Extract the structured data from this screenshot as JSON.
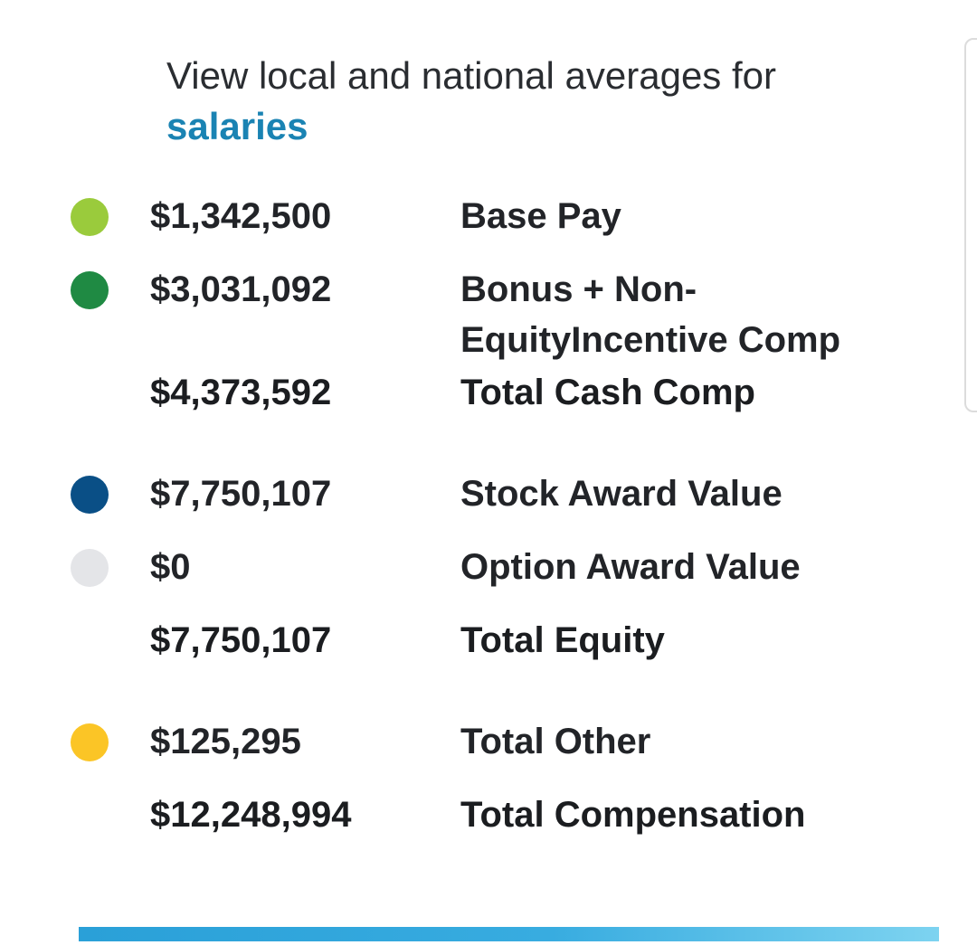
{
  "intro": {
    "text": "View local and national averages for",
    "link_label": "salaries"
  },
  "rows": [
    {
      "amount": "$1,342,500",
      "label": "Base Pay",
      "dot_color": "#9acb3c"
    },
    {
      "amount": "$3,031,092",
      "label": "Bonus + Non-EquityIncentive Comp",
      "dot_color": "#1f8a43"
    },
    {
      "amount": "$4,373,592",
      "label": "Total Cash Comp"
    },
    {
      "amount": "$7,750,107",
      "label": "Stock Award Value",
      "dot_color": "#0a4f86"
    },
    {
      "amount": "$0",
      "label": "Option Award Value",
      "dot_color": "#e4e5e8"
    },
    {
      "amount": "$7,750,107",
      "label": "Total Equity"
    },
    {
      "amount": "$125,295",
      "label": "Total Other",
      "dot_color": "#fbc526"
    },
    {
      "amount": "$12,248,994",
      "label": "Total Compensation"
    }
  ],
  "colors": {
    "link": "#1a83b3",
    "bottom_bar": "#2aa0d8"
  }
}
